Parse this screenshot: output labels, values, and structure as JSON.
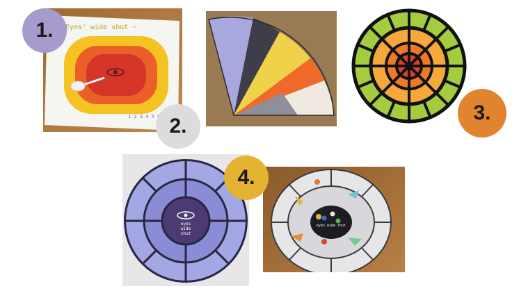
{
  "badges": [
    {
      "label": "1.",
      "color": "#a79bcd"
    },
    {
      "label": "2.",
      "color": "#dcdcdc"
    },
    {
      "label": "3.",
      "color": "#e2842f"
    },
    {
      "label": "4.",
      "color": "#e3b331"
    }
  ],
  "photo1": {
    "handwritten_title": "Eyes' wide shut ~",
    "handwritten_footer": "1 2 3 4 5 6"
  },
  "photo4a": {
    "center_text_line1": "eyes",
    "center_text_line2": "wide",
    "center_text_line3": "shut"
  },
  "photo4b": {
    "center_text": "eyes wide shut"
  },
  "colors": {
    "wood": "#b07a3c",
    "lavender": "#a3a8e4",
    "purple_dark": "#4b3a74",
    "yellow": "#f4c321",
    "orange": "#f08a26",
    "red": "#d6352a",
    "green": "#a4cc3e"
  }
}
